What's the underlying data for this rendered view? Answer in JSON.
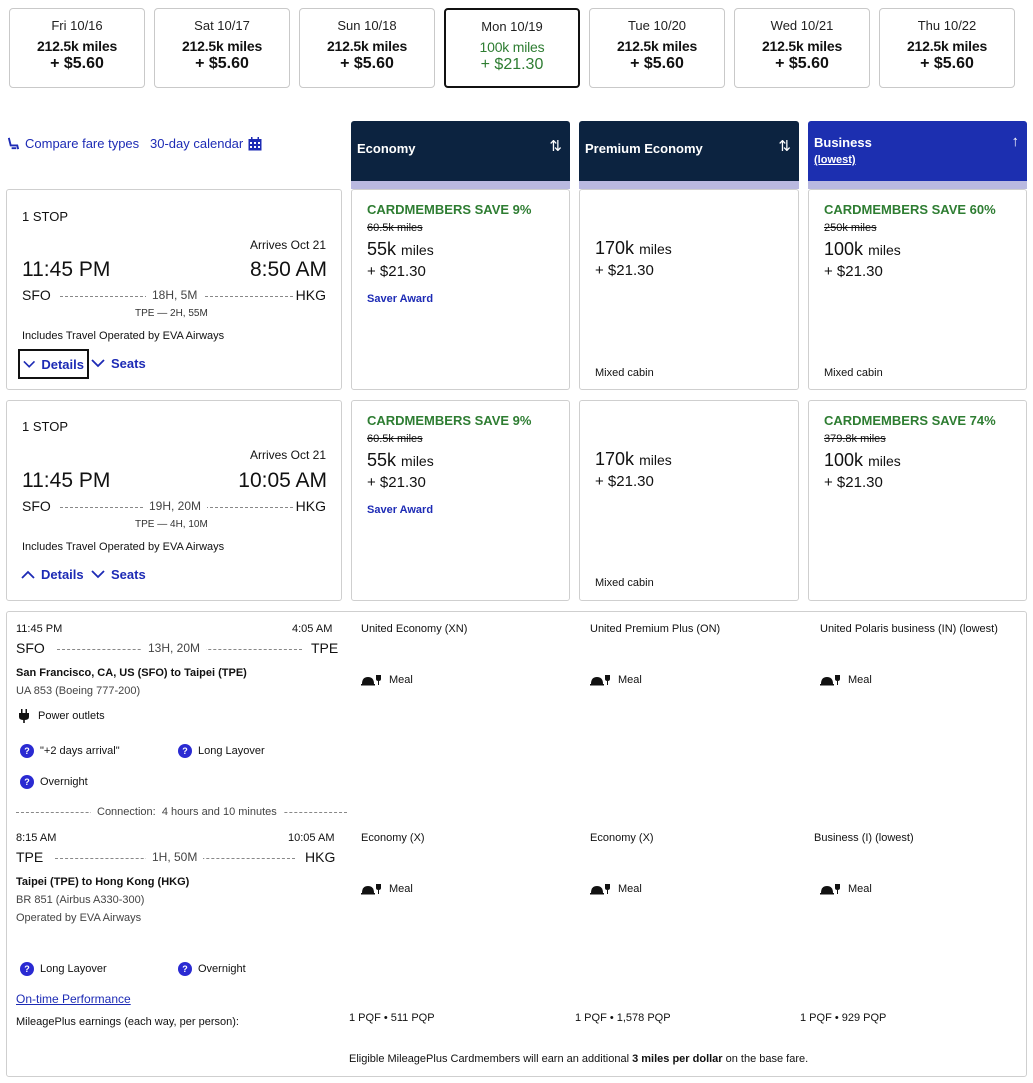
{
  "dates": [
    {
      "day": "Fri 10/16",
      "miles": "212.5k miles",
      "price": "+ $5.60"
    },
    {
      "day": "Sat 10/17",
      "miles": "212.5k miles",
      "price": "+ $5.60"
    },
    {
      "day": "Sun 10/18",
      "miles": "212.5k miles",
      "price": "+ $5.60"
    },
    {
      "day": "Mon 10/19",
      "miles": "100k miles",
      "price": "+ $21.30"
    },
    {
      "day": "Tue 10/20",
      "miles": "212.5k miles",
      "price": "+ $5.60"
    },
    {
      "day": "Wed 10/21",
      "miles": "212.5k miles",
      "price": "+ $5.60"
    },
    {
      "day": "Thu 10/22",
      "miles": "212.5k miles",
      "price": "+ $5.60"
    }
  ],
  "toolbar": {
    "compare": "Compare fare types",
    "calendar": "30-day calendar"
  },
  "cabins": [
    {
      "label": "Economy",
      "sub": ""
    },
    {
      "label": "Premium Economy",
      "sub": ""
    },
    {
      "label": "Business",
      "sub": "(lowest)"
    }
  ],
  "flights": [
    {
      "stops": "1 STOP",
      "arrives": "Arrives Oct 21",
      "dep_time": "11:45 PM",
      "arr_time": "8:50 AM",
      "origin": "SFO",
      "dest": "HKG",
      "duration": "18H, 5M",
      "layover": "TPE — 2H, 55M",
      "operated": "Includes Travel Operated by EVA Airways",
      "details": "Details",
      "seats": "Seats",
      "fares": [
        {
          "save": "CARDMEMBERS SAVE 9%",
          "orig": "60.5k miles",
          "miles": "55k",
          "unit": "miles",
          "tax": "+ $21.30",
          "note": "Saver Award",
          "mixed": ""
        },
        {
          "save": "",
          "orig": "",
          "miles": "170k",
          "unit": "miles",
          "tax": "+ $21.30",
          "note": "",
          "mixed": "Mixed cabin"
        },
        {
          "save": "CARDMEMBERS SAVE 60%",
          "orig": "250k miles",
          "miles": "100k",
          "unit": "miles",
          "tax": "+ $21.30",
          "note": "",
          "mixed": "Mixed cabin"
        }
      ]
    },
    {
      "stops": "1 STOP",
      "arrives": "Arrives Oct 21",
      "dep_time": "11:45 PM",
      "arr_time": "10:05 AM",
      "origin": "SFO",
      "dest": "HKG",
      "duration": "19H, 20M",
      "layover": "TPE — 4H, 10M",
      "operated": "Includes Travel Operated by EVA Airways",
      "details": "Details",
      "seats": "Seats",
      "fares": [
        {
          "save": "CARDMEMBERS SAVE 9%",
          "orig": "60.5k miles",
          "miles": "55k",
          "unit": "miles",
          "tax": "+ $21.30",
          "note": "Saver Award",
          "mixed": ""
        },
        {
          "save": "",
          "orig": "",
          "miles": "170k",
          "unit": "miles",
          "tax": "+ $21.30",
          "note": "",
          "mixed": "Mixed cabin"
        },
        {
          "save": "CARDMEMBERS SAVE 74%",
          "orig": "379.8k miles",
          "miles": "100k",
          "unit": "miles",
          "tax": "+ $21.30",
          "note": "",
          "mixed": ""
        }
      ]
    }
  ],
  "segments": [
    {
      "dep_time": "11:45 PM",
      "arr_time": "4:05 AM",
      "origin": "SFO",
      "dest": "TPE",
      "duration": "13H, 20M",
      "route": "San Francisco, CA, US (SFO) to Taipei (TPE)",
      "flight": "UA 853 (Boeing 777-200)",
      "amenity": "Power outlets",
      "operated": "",
      "cabins": [
        "United Economy (XN)",
        "United Premium Plus (ON)",
        "United Polaris business (IN) (lowest)"
      ],
      "meal": "Meal",
      "flags": [
        "\"+2 days arrival\"",
        "Long Layover",
        "Overnight"
      ]
    },
    {
      "dep_time": "8:15 AM",
      "arr_time": "10:05 AM",
      "origin": "TPE",
      "dest": "HKG",
      "duration": "1H, 50M",
      "route": "Taipei (TPE) to Hong Kong (HKG)",
      "flight": "BR 851 (Airbus A330-300)",
      "amenity": "",
      "operated": "Operated by EVA Airways",
      "cabins": [
        "Economy (X)",
        "Economy (X)",
        "Business (I) (lowest)"
      ],
      "meal": "Meal",
      "flags": [
        "Long Layover",
        "Overnight"
      ]
    }
  ],
  "connection": "Connection:  4 hours and 10 minutes",
  "ontime": "On-time Performance",
  "earnings_label": "MileagePlus earnings (each way, per person):",
  "earnings": [
    "1 PQF • 511 PQP",
    "1 PQF • 1,578 PQP",
    "1 PQF • 929 PQP"
  ],
  "footer_pre": "Eligible MileagePlus Cardmembers will earn an additional ",
  "footer_bold": "3 miles per dollar",
  "footer_post": " on the base fare."
}
